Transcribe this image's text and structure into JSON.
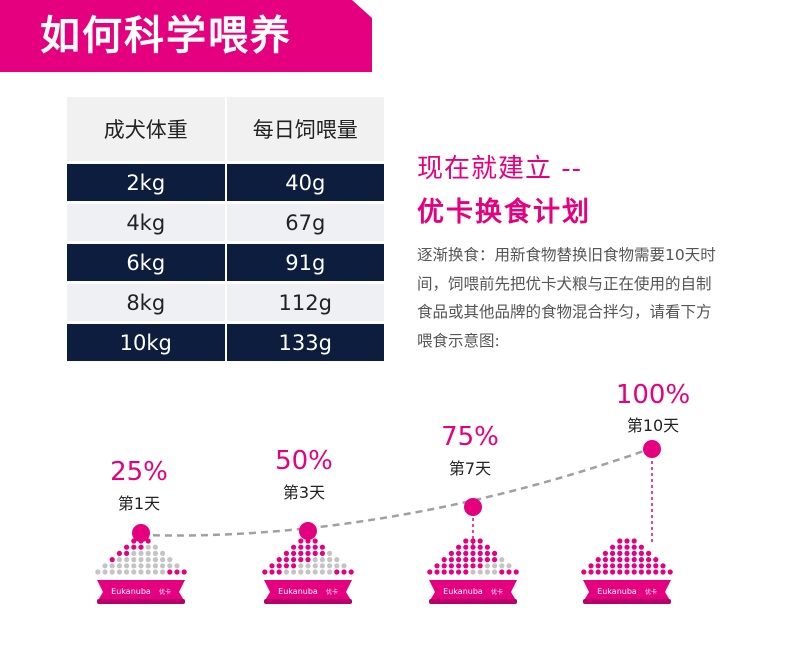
{
  "header": {
    "title": "如何科学喂养"
  },
  "table": {
    "headers": [
      "成犬体重",
      "每日饲喂量"
    ],
    "rows": [
      [
        "2kg",
        "40g"
      ],
      [
        "4kg",
        "67g"
      ],
      [
        "6kg",
        "91g"
      ],
      [
        "8kg",
        "112g"
      ],
      [
        "10kg",
        "133g"
      ]
    ]
  },
  "plan": {
    "line1": "现在就建立 --",
    "line2": "优卡换食计划",
    "description": "逐渐换食：用新食物替换旧食物需要10天时间，饲喂前先把优卡犬粮与正在使用的自制食品或其他品牌的食物混合拌匀，请看下方喂食示意图:"
  },
  "steps": [
    {
      "percent": "25%",
      "day": "第1天",
      "ratio": 0.25
    },
    {
      "percent": "50%",
      "day": "第3天",
      "ratio": 0.5
    },
    {
      "percent": "75%",
      "day": "第7天",
      "ratio": 0.75
    },
    {
      "percent": "100%",
      "day": "第10天",
      "ratio": 1.0
    }
  ],
  "bowl": {
    "brand": "Eukanuba",
    "brand_cn": "优卡"
  },
  "colors": {
    "accent": "#e4007f",
    "navy": "#0d1d3d",
    "grey": "#c4c4c4"
  }
}
